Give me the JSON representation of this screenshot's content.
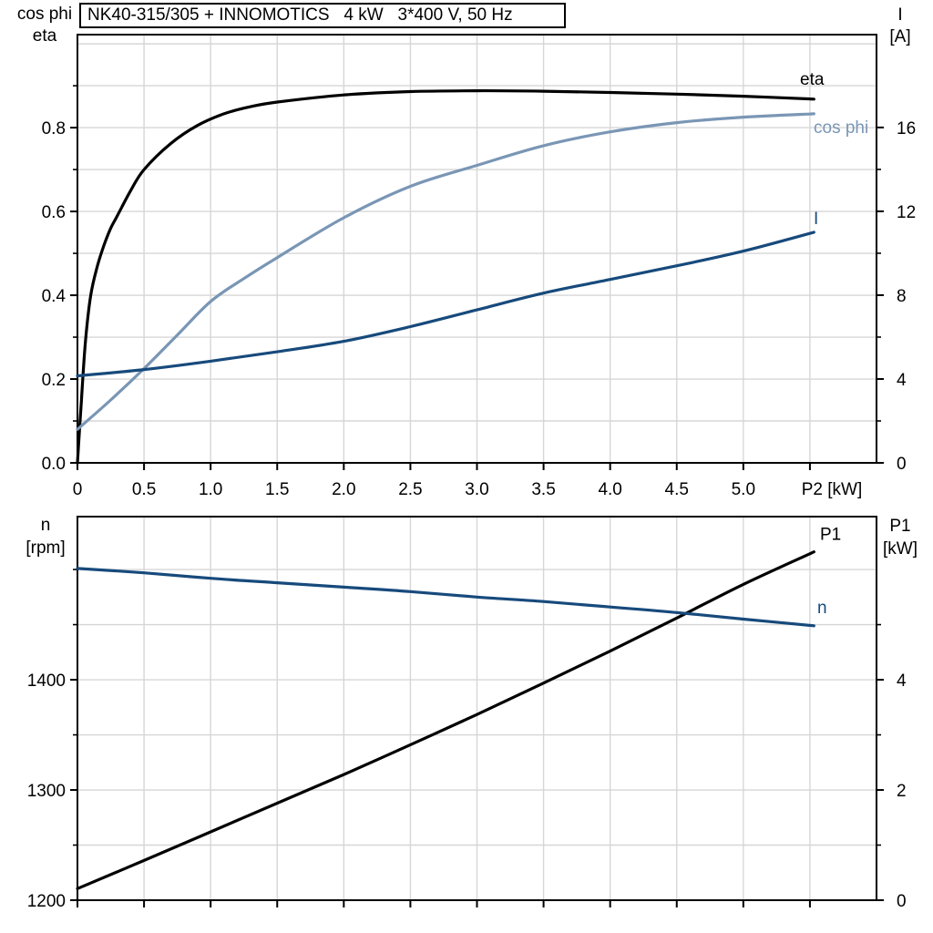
{
  "title_box": {
    "text": "NK40-315/305 + INNOMOTICS   4 kW   3*400 V, 50 Hz"
  },
  "colors": {
    "background": "#ffffff",
    "axis": "#000000",
    "grid": "#d6d6d6",
    "eta": "#000000",
    "cos_phi": "#7a96b5",
    "current": "#174a7c",
    "p1": "#000000",
    "n": "#174a7c"
  },
  "chart_data": [
    {
      "type": "line",
      "title": "NK40-315/305 + INNOMOTICS   4 kW   3*400 V, 50 Hz",
      "xlabel": "P2 [kW]",
      "ylabel_left_line1": "cos phi",
      "ylabel_left_line2": "eta",
      "ylabel_right_line1": "I",
      "ylabel_right_line2": "[A]",
      "xlim": [
        0,
        6.0
      ],
      "ylim_left": [
        0,
        1.022
      ],
      "ylim_right": [
        0,
        20.43
      ],
      "grid": true,
      "legend_position": "right-of-curve-end",
      "x_tick_values": [
        0,
        0.5,
        1,
        1.5,
        2,
        2.5,
        3,
        3.5,
        4,
        4.5,
        5,
        5.5
      ],
      "x_tick_labels": [
        "0",
        "0.5",
        "1.0",
        "1.5",
        "2.0",
        "2.5",
        "3.0",
        "3.5",
        "4.0",
        "4.5",
        "5.0"
      ],
      "x_grid_values": [
        0.5,
        1,
        1.5,
        2,
        2.5,
        3,
        3.5,
        4,
        4.5,
        5,
        5.5
      ],
      "y_left_tick_values": [
        0,
        0.2,
        0.4,
        0.6,
        0.8
      ],
      "y_left_tick_labels": [
        "0.0",
        "0.2",
        "0.4",
        "0.6",
        "0.8"
      ],
      "y_left_minor_ticks": [
        0.1,
        0.3,
        0.5,
        0.7,
        0.9
      ],
      "y_right_tick_values": [
        0,
        4,
        8,
        12,
        16
      ],
      "y_right_tick_labels": [
        "0",
        "4",
        "8",
        "12",
        "16"
      ],
      "y_right_minor_ticks": [
        2,
        6,
        10,
        14
      ],
      "y_grid_values": [
        0.1,
        0.2,
        0.3,
        0.4,
        0.5,
        0.6,
        0.7,
        0.8,
        0.9,
        1.0
      ],
      "series": [
        {
          "name": "eta",
          "label": "eta",
          "axis": "left",
          "color": "#000000",
          "x": [
            0,
            0.03,
            0.06,
            0.1,
            0.15,
            0.2,
            0.25,
            0.3,
            0.4,
            0.5,
            0.7,
            0.9,
            1.1,
            1.3,
            1.5,
            2,
            2.5,
            3,
            3.5,
            4,
            4.5,
            5,
            5.53
          ],
          "y": [
            0,
            0.15,
            0.29,
            0.4,
            0.47,
            0.52,
            0.56,
            0.59,
            0.65,
            0.7,
            0.762,
            0.805,
            0.833,
            0.85,
            0.861,
            0.878,
            0.886,
            0.888,
            0.887,
            0.884,
            0.88,
            0.875,
            0.868
          ]
        },
        {
          "name": "cos phi",
          "label": "cos phi",
          "axis": "left",
          "color": "#7a96b5",
          "x": [
            0,
            0.25,
            0.5,
            0.75,
            1,
            1.25,
            1.5,
            2,
            2.5,
            3,
            3.5,
            4,
            4.5,
            5,
            5.53
          ],
          "y": [
            0.08,
            0.15,
            0.225,
            0.305,
            0.385,
            0.44,
            0.49,
            0.585,
            0.66,
            0.71,
            0.757,
            0.79,
            0.812,
            0.825,
            0.833
          ]
        },
        {
          "name": "I",
          "label": "I",
          "axis": "right",
          "color": "#174a7c",
          "x": [
            0,
            0.5,
            1,
            1.5,
            2,
            2.5,
            3,
            3.5,
            4,
            4.5,
            5,
            5.53
          ],
          "y": [
            4.15,
            4.45,
            4.85,
            5.3,
            5.8,
            6.5,
            7.3,
            8.1,
            8.75,
            9.4,
            10.1,
            11.0
          ]
        }
      ]
    },
    {
      "type": "line",
      "title": "",
      "xlabel": "",
      "ylabel_left_line1": "n",
      "ylabel_left_line2": "[rpm]",
      "ylabel_right_line1": "P1",
      "ylabel_right_line2": "[kW]",
      "xlim": [
        0,
        6.0
      ],
      "ylim_left": [
        1200,
        1548
      ],
      "ylim_right": [
        0,
        6.96
      ],
      "grid": true,
      "legend_position": "right-of-curve-end",
      "x_tick_values": [
        0,
        0.5,
        1,
        1.5,
        2,
        2.5,
        3,
        3.5,
        4,
        4.5,
        5,
        5.5
      ],
      "x_tick_labels": [],
      "x_grid_values": [
        0.5,
        1,
        1.5,
        2,
        2.5,
        3,
        3.5,
        4,
        4.5,
        5,
        5.5
      ],
      "y_left_tick_values": [
        1200,
        1300,
        1400
      ],
      "y_left_tick_labels": [
        "1200",
        "1300",
        "1400"
      ],
      "y_left_minor_ticks": [
        1250,
        1350,
        1450,
        1500
      ],
      "y_right_tick_values": [
        0,
        2,
        4
      ],
      "y_right_tick_labels": [
        "0",
        "2",
        "4"
      ],
      "y_right_minor_ticks": [
        1,
        3,
        5
      ],
      "y_grid_values": [
        1250,
        1300,
        1350,
        1400,
        1450,
        1500
      ],
      "series": [
        {
          "name": "P1",
          "label": "P1",
          "axis": "right",
          "color": "#000000",
          "x": [
            0,
            0.5,
            1,
            1.5,
            2,
            2.5,
            3,
            3.5,
            4,
            4.5,
            5,
            5.53
          ],
          "y": [
            0.21,
            0.72,
            1.24,
            1.76,
            2.28,
            2.82,
            3.37,
            3.94,
            4.52,
            5.12,
            5.73,
            6.32
          ]
        },
        {
          "name": "n",
          "label": "n",
          "axis": "left",
          "color": "#174a7c",
          "x": [
            0,
            0.5,
            1,
            1.5,
            2,
            2.5,
            3,
            3.5,
            4,
            4.5,
            5,
            5.53
          ],
          "y": [
            1501,
            1497,
            1492,
            1488,
            1484,
            1480,
            1475,
            1471,
            1466,
            1461,
            1455,
            1449
          ]
        }
      ]
    }
  ]
}
